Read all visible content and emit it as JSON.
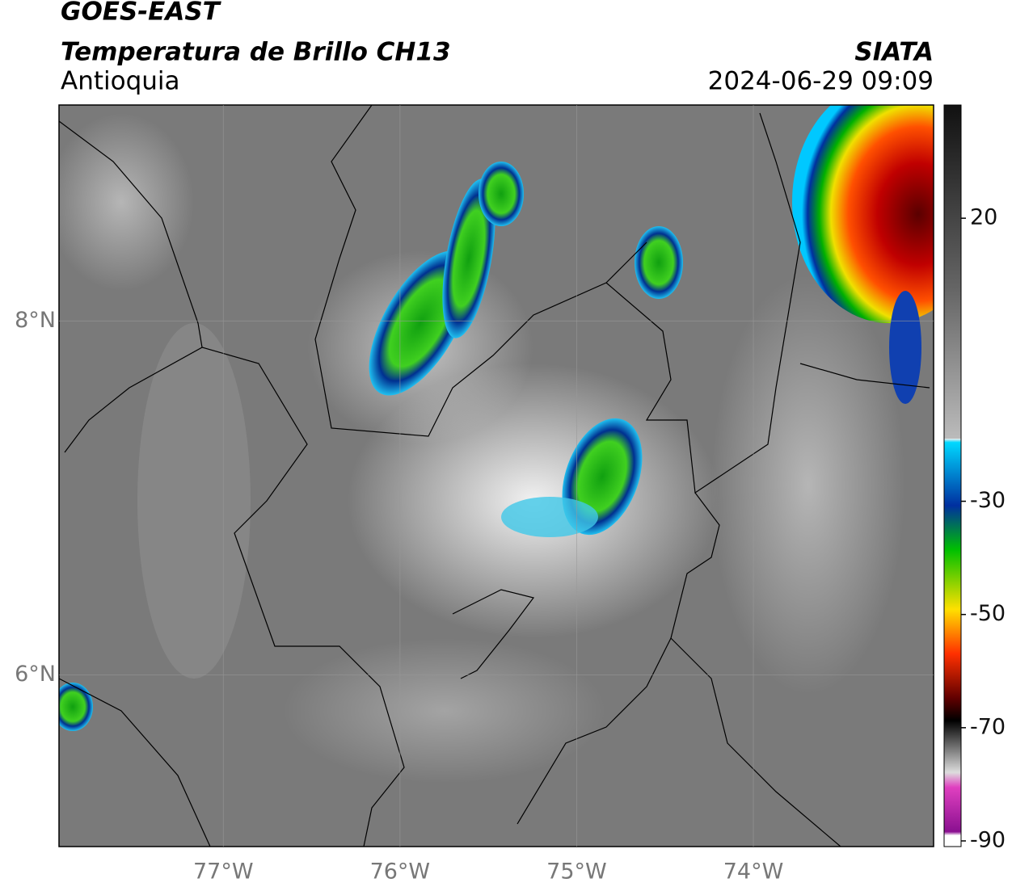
{
  "chart_data": {
    "type": "map",
    "title": "GOES-EAST",
    "subtitle": "Temperatura de Brillo CH13",
    "region": "Antioquia",
    "source": "SIATA",
    "datetime": "2024-06-29 09:09",
    "xlim": [
      -77.93,
      -72.98
    ],
    "ylim": [
      5.03,
      9.22
    ],
    "xticks": [
      {
        "value": -77,
        "label": "77°W"
      },
      {
        "value": -76,
        "label": "76°W"
      },
      {
        "value": -75,
        "label": "75°W"
      },
      {
        "value": -74,
        "label": "74°W"
      }
    ],
    "yticks": [
      {
        "value": 8,
        "label": "8°N"
      },
      {
        "value": 6,
        "label": "6°N"
      }
    ],
    "grid": true,
    "colorbar": {
      "lim": [
        -91,
        40
      ],
      "ticks": [
        20,
        -30,
        -50,
        -70,
        -90
      ]
    }
  }
}
